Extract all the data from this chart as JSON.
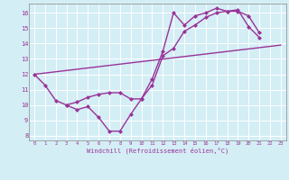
{
  "title": "",
  "xlabel": "Windchill (Refroidissement éolien,°C)",
  "background_color": "#d4eef5",
  "grid_color": "#ffffff",
  "line_color": "#993399",
  "xlim": [
    -0.5,
    23.5
  ],
  "ylim": [
    7.7,
    16.6
  ],
  "xticks": [
    0,
    1,
    2,
    3,
    4,
    5,
    6,
    7,
    8,
    9,
    10,
    11,
    12,
    13,
    14,
    15,
    16,
    17,
    18,
    19,
    20,
    21,
    22,
    23
  ],
  "yticks": [
    8,
    9,
    10,
    11,
    12,
    13,
    14,
    15,
    16
  ],
  "line1_x": [
    0,
    1,
    2,
    3,
    4,
    5,
    6,
    7,
    8,
    9,
    10,
    11,
    12,
    13,
    14,
    15,
    16,
    17,
    18,
    19,
    20,
    21
  ],
  "line1_y": [
    12.0,
    11.3,
    10.3,
    10.0,
    9.7,
    9.9,
    9.2,
    8.3,
    8.3,
    9.4,
    10.4,
    11.7,
    13.5,
    16.0,
    15.2,
    15.8,
    16.0,
    16.3,
    16.1,
    16.2,
    15.1,
    14.4
  ],
  "line2_x": [
    3,
    4,
    5,
    6,
    7,
    8,
    9,
    10,
    11,
    12,
    13,
    14,
    15,
    16,
    17,
    18,
    19,
    20,
    21
  ],
  "line2_y": [
    10.0,
    10.2,
    10.5,
    10.7,
    10.8,
    10.8,
    10.4,
    10.4,
    11.3,
    13.2,
    13.7,
    14.8,
    15.2,
    15.7,
    16.0,
    16.1,
    16.1,
    15.8,
    14.7
  ],
  "line3_x": [
    0,
    23
  ],
  "line3_y": [
    12.0,
    13.9
  ],
  "markersize": 2.5,
  "linewidth": 1.0
}
